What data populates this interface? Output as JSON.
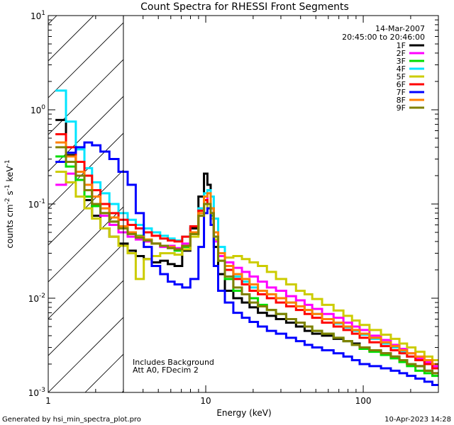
{
  "chart_data": {
    "type": "line",
    "title": "Count Spectra for RHESSI Front Segments",
    "xlabel": "Energy (keV)",
    "ylabel_parts": {
      "a": "counts cm",
      "b": "-2",
      "c": " s",
      "d": "-1",
      "e": " keV",
      "f": "-1"
    },
    "xscale": "log",
    "yscale": "log",
    "xlim": [
      1,
      300
    ],
    "ylim": [
      0.001,
      10
    ],
    "x_ticks": [
      {
        "v": 1,
        "label": "1"
      },
      {
        "v": 10,
        "label": "10"
      },
      {
        "v": 100,
        "label": "100"
      }
    ],
    "y_ticks": [
      {
        "v": 0.001,
        "base": "10",
        "exp": "-3"
      },
      {
        "v": 0.01,
        "base": "10",
        "exp": "-2"
      },
      {
        "v": 0.1,
        "base": "10",
        "exp": "-1"
      },
      {
        "v": 1,
        "base": "10",
        "exp": "0"
      },
      {
        "v": 10,
        "base": "10",
        "exp": "1"
      }
    ],
    "date": "14-Mar-2007",
    "time_range": "20:45:00 to 20:46:00",
    "hatched_region": {
      "x_from": 1,
      "x_to": 3
    },
    "annotations": [
      "Includes Background",
      "Att A0, FDecim 2"
    ],
    "legend_position": "top-right",
    "series": [
      {
        "name": "1F",
        "color": "#000000",
        "x": [
          1.2,
          1.4,
          1.6,
          1.8,
          2.0,
          2.3,
          2.6,
          3.0,
          3.4,
          3.8,
          4.3,
          4.8,
          5.5,
          6.0,
          6.7,
          7.5,
          8.5,
          9.5,
          10.0,
          10.5,
          11.0,
          11.5,
          12.5,
          14,
          16,
          18,
          20,
          23,
          26,
          30,
          35,
          40,
          45,
          50,
          60,
          70,
          80,
          90,
          100,
          120,
          140,
          160,
          180,
          200,
          230,
          260,
          290
        ],
        "y": [
          0.78,
          0.33,
          0.18,
          0.11,
          0.075,
          0.055,
          0.045,
          0.038,
          0.032,
          0.028,
          0.026,
          0.024,
          0.025,
          0.023,
          0.022,
          0.032,
          0.055,
          0.12,
          0.21,
          0.16,
          0.09,
          0.035,
          0.018,
          0.012,
          0.01,
          0.009,
          0.008,
          0.007,
          0.0065,
          0.006,
          0.0055,
          0.005,
          0.0045,
          0.0042,
          0.004,
          0.0037,
          0.0035,
          0.0033,
          0.003,
          0.0028,
          0.0026,
          0.0024,
          0.0022,
          0.002,
          0.0019,
          0.0017,
          0.0016
        ]
      },
      {
        "name": "2F",
        "color": "#ff00ff",
        "x": [
          1.2,
          1.4,
          1.6,
          1.8,
          2.0,
          2.3,
          2.6,
          3.0,
          3.4,
          3.8,
          4.3,
          4.8,
          5.5,
          6.0,
          6.7,
          7.5,
          8.5,
          9.5,
          10.0,
          10.5,
          11.0,
          11.5,
          12.5,
          14,
          16,
          18,
          20,
          23,
          26,
          30,
          35,
          40,
          45,
          50,
          60,
          70,
          80,
          90,
          100,
          120,
          140,
          160,
          180,
          200,
          230,
          260,
          290
        ],
        "y": [
          0.16,
          0.21,
          0.2,
          0.14,
          0.1,
          0.075,
          0.06,
          0.05,
          0.045,
          0.042,
          0.04,
          0.038,
          0.035,
          0.036,
          0.034,
          0.038,
          0.05,
          0.085,
          0.12,
          0.1,
          0.07,
          0.04,
          0.028,
          0.024,
          0.021,
          0.019,
          0.017,
          0.015,
          0.013,
          0.012,
          0.0105,
          0.0095,
          0.0085,
          0.0077,
          0.0068,
          0.0062,
          0.0055,
          0.005,
          0.0046,
          0.004,
          0.0036,
          0.0032,
          0.0029,
          0.0026,
          0.0023,
          0.0021,
          0.0019
        ]
      },
      {
        "name": "3F",
        "color": "#00dd00",
        "x": [
          1.2,
          1.4,
          1.6,
          1.8,
          2.0,
          2.3,
          2.6,
          3.0,
          3.4,
          3.8,
          4.3,
          4.8,
          5.5,
          6.0,
          6.7,
          7.5,
          8.5,
          9.5,
          10.0,
          10.5,
          11.0,
          11.5,
          12.5,
          14,
          16,
          18,
          20,
          23,
          26,
          30,
          35,
          40,
          45,
          50,
          60,
          70,
          80,
          90,
          100,
          120,
          140,
          160,
          180,
          200,
          230,
          260,
          290
        ],
        "y": [
          0.32,
          0.25,
          0.18,
          0.12,
          0.095,
          0.08,
          0.065,
          0.055,
          0.05,
          0.046,
          0.042,
          0.038,
          0.036,
          0.034,
          0.032,
          0.035,
          0.048,
          0.08,
          0.11,
          0.1,
          0.075,
          0.045,
          0.025,
          0.016,
          0.012,
          0.011,
          0.01,
          0.0085,
          0.0075,
          0.0068,
          0.006,
          0.0055,
          0.005,
          0.0045,
          0.0042,
          0.0038,
          0.0035,
          0.0032,
          0.0029,
          0.0027,
          0.0025,
          0.0023,
          0.0021,
          0.0019,
          0.0017,
          0.0016,
          0.0015
        ]
      },
      {
        "name": "4F",
        "color": "#00e5ff",
        "x": [
          1.2,
          1.4,
          1.6,
          1.8,
          2.0,
          2.3,
          2.6,
          3.0,
          3.4,
          3.8,
          4.3,
          4.8,
          5.5,
          6.0,
          6.7,
          7.5,
          8.5,
          9.5,
          10.0,
          10.5,
          11.0,
          11.5,
          12.5,
          14,
          16,
          18,
          20,
          23,
          26,
          30,
          35,
          40,
          45,
          50,
          60,
          70,
          80,
          90,
          100,
          120,
          140,
          160,
          180,
          200,
          230,
          260,
          290
        ],
        "y": [
          1.6,
          0.75,
          0.38,
          0.24,
          0.17,
          0.13,
          0.1,
          0.08,
          0.068,
          0.06,
          0.055,
          0.05,
          0.046,
          0.043,
          0.041,
          0.045,
          0.058,
          0.09,
          0.13,
          0.14,
          0.12,
          0.07,
          0.035,
          0.022,
          0.017,
          0.015,
          0.013,
          0.012,
          0.011,
          0.01,
          0.009,
          0.0082,
          0.0075,
          0.0068,
          0.006,
          0.0054,
          0.0049,
          0.0045,
          0.0041,
          0.0037,
          0.0033,
          0.003,
          0.0027,
          0.0024,
          0.0022,
          0.002,
          0.0018
        ]
      },
      {
        "name": "5F",
        "color": "#cccc00",
        "x": [
          1.2,
          1.4,
          1.6,
          1.8,
          2.0,
          2.3,
          2.6,
          3.0,
          3.4,
          3.8,
          4.3,
          4.8,
          5.5,
          6.0,
          6.7,
          7.5,
          8.5,
          9.5,
          10.0,
          10.5,
          11.0,
          11.5,
          12.5,
          14,
          16,
          18,
          20,
          23,
          26,
          30,
          35,
          40,
          45,
          50,
          60,
          70,
          80,
          90,
          100,
          120,
          140,
          160,
          180,
          200,
          230,
          260,
          290
        ],
        "y": [
          0.22,
          0.17,
          0.12,
          0.09,
          0.07,
          0.055,
          0.045,
          0.036,
          0.03,
          0.016,
          0.026,
          0.028,
          0.03,
          0.03,
          0.029,
          0.033,
          0.045,
          0.075,
          0.1,
          0.09,
          0.07,
          0.042,
          0.03,
          0.027,
          0.028,
          0.026,
          0.024,
          0.022,
          0.019,
          0.016,
          0.014,
          0.012,
          0.011,
          0.0098,
          0.0085,
          0.0074,
          0.0065,
          0.0058,
          0.0052,
          0.0046,
          0.0041,
          0.0037,
          0.0033,
          0.003,
          0.0027,
          0.0024,
          0.0022
        ]
      },
      {
        "name": "6F",
        "color": "#ff0000",
        "x": [
          1.2,
          1.4,
          1.6,
          1.8,
          2.0,
          2.3,
          2.6,
          3.0,
          3.4,
          3.8,
          4.3,
          4.8,
          5.5,
          6.0,
          6.7,
          7.5,
          8.5,
          9.5,
          10.0,
          10.5,
          11.0,
          11.5,
          12.5,
          14,
          16,
          18,
          20,
          23,
          26,
          30,
          35,
          40,
          45,
          50,
          60,
          70,
          80,
          90,
          100,
          120,
          140,
          160,
          180,
          200,
          230,
          260,
          290
        ],
        "y": [
          0.55,
          0.4,
          0.28,
          0.2,
          0.14,
          0.1,
          0.08,
          0.068,
          0.06,
          0.055,
          0.05,
          0.046,
          0.043,
          0.041,
          0.04,
          0.045,
          0.058,
          0.085,
          0.11,
          0.1,
          0.08,
          0.05,
          0.03,
          0.02,
          0.016,
          0.014,
          0.012,
          0.011,
          0.01,
          0.009,
          0.0082,
          0.0075,
          0.0068,
          0.0062,
          0.0055,
          0.005,
          0.0046,
          0.0042,
          0.0038,
          0.0034,
          0.0031,
          0.0028,
          0.0026,
          0.0024,
          0.0022,
          0.002,
          0.0018
        ]
      },
      {
        "name": "7F",
        "color": "#0000ff",
        "x": [
          1.2,
          1.4,
          1.6,
          1.8,
          2.0,
          2.3,
          2.6,
          3.0,
          3.4,
          3.8,
          4.3,
          4.8,
          5.5,
          6.0,
          6.7,
          7.5,
          8.5,
          9.5,
          10.0,
          10.5,
          11.0,
          11.5,
          12.5,
          14,
          16,
          18,
          20,
          23,
          26,
          30,
          35,
          40,
          45,
          50,
          60,
          70,
          80,
          90,
          100,
          120,
          140,
          160,
          180,
          200,
          230,
          260,
          290
        ],
        "y": [
          0.28,
          0.35,
          0.4,
          0.45,
          0.42,
          0.36,
          0.3,
          0.22,
          0.16,
          0.08,
          0.035,
          0.022,
          0.018,
          0.015,
          0.014,
          0.013,
          0.016,
          0.035,
          0.08,
          0.09,
          0.06,
          0.022,
          0.012,
          0.009,
          0.007,
          0.0062,
          0.0056,
          0.005,
          0.0045,
          0.0042,
          0.0038,
          0.0035,
          0.0032,
          0.003,
          0.0028,
          0.0026,
          0.0024,
          0.0022,
          0.002,
          0.0019,
          0.0018,
          0.0017,
          0.0016,
          0.0015,
          0.0014,
          0.0013,
          0.0012
        ]
      },
      {
        "name": "8F",
        "color": "#ff7f00",
        "x": [
          1.2,
          1.4,
          1.6,
          1.8,
          2.0,
          2.3,
          2.6,
          3.0,
          3.4,
          3.8,
          4.3,
          4.8,
          5.5,
          6.0,
          6.7,
          7.5,
          8.5,
          9.5,
          10.0,
          10.5,
          11.0,
          11.5,
          12.5,
          14,
          16,
          18,
          20,
          23,
          26,
          30,
          35,
          40,
          45,
          50,
          60,
          70,
          80,
          90,
          100,
          120,
          140,
          160,
          180,
          200,
          230,
          260,
          290
        ],
        "y": [
          0.45,
          0.32,
          0.22,
          0.16,
          0.12,
          0.09,
          0.072,
          0.058,
          0.05,
          0.045,
          0.042,
          0.038,
          0.036,
          0.035,
          0.033,
          0.036,
          0.05,
          0.08,
          0.12,
          0.13,
          0.09,
          0.05,
          0.03,
          0.022,
          0.018,
          0.016,
          0.014,
          0.012,
          0.011,
          0.01,
          0.009,
          0.0082,
          0.0075,
          0.0068,
          0.006,
          0.0055,
          0.005,
          0.0046,
          0.0042,
          0.0038,
          0.0034,
          0.0031,
          0.0028,
          0.0026,
          0.0024,
          0.0022,
          0.002
        ]
      },
      {
        "name": "9F",
        "color": "#808000",
        "x": [
          1.2,
          1.4,
          1.6,
          1.8,
          2.0,
          2.3,
          2.6,
          3.0,
          3.4,
          3.8,
          4.3,
          4.8,
          5.5,
          6.0,
          6.7,
          7.5,
          8.5,
          9.5,
          10.0,
          10.5,
          11.0,
          11.5,
          12.5,
          14,
          16,
          18,
          20,
          23,
          26,
          30,
          35,
          40,
          45,
          50,
          60,
          70,
          80,
          90,
          100,
          120,
          140,
          160,
          180,
          200,
          230,
          260,
          290
        ],
        "y": [
          0.4,
          0.28,
          0.2,
          0.14,
          0.1,
          0.08,
          0.065,
          0.055,
          0.048,
          0.044,
          0.041,
          0.038,
          0.036,
          0.034,
          0.033,
          0.036,
          0.048,
          0.075,
          0.1,
          0.1,
          0.08,
          0.045,
          0.025,
          0.017,
          0.013,
          0.011,
          0.009,
          0.0082,
          0.0075,
          0.0068,
          0.006,
          0.0055,
          0.005,
          0.0045,
          0.0042,
          0.0038,
          0.0035,
          0.0032,
          0.003,
          0.0028,
          0.0026,
          0.0024,
          0.0022,
          0.002,
          0.0019,
          0.0017,
          0.0016
        ]
      }
    ]
  },
  "footer": {
    "generator": "Generated by hsi_min_spectra_plot.pro",
    "timestamp": "10-Apr-2023 14:28"
  }
}
